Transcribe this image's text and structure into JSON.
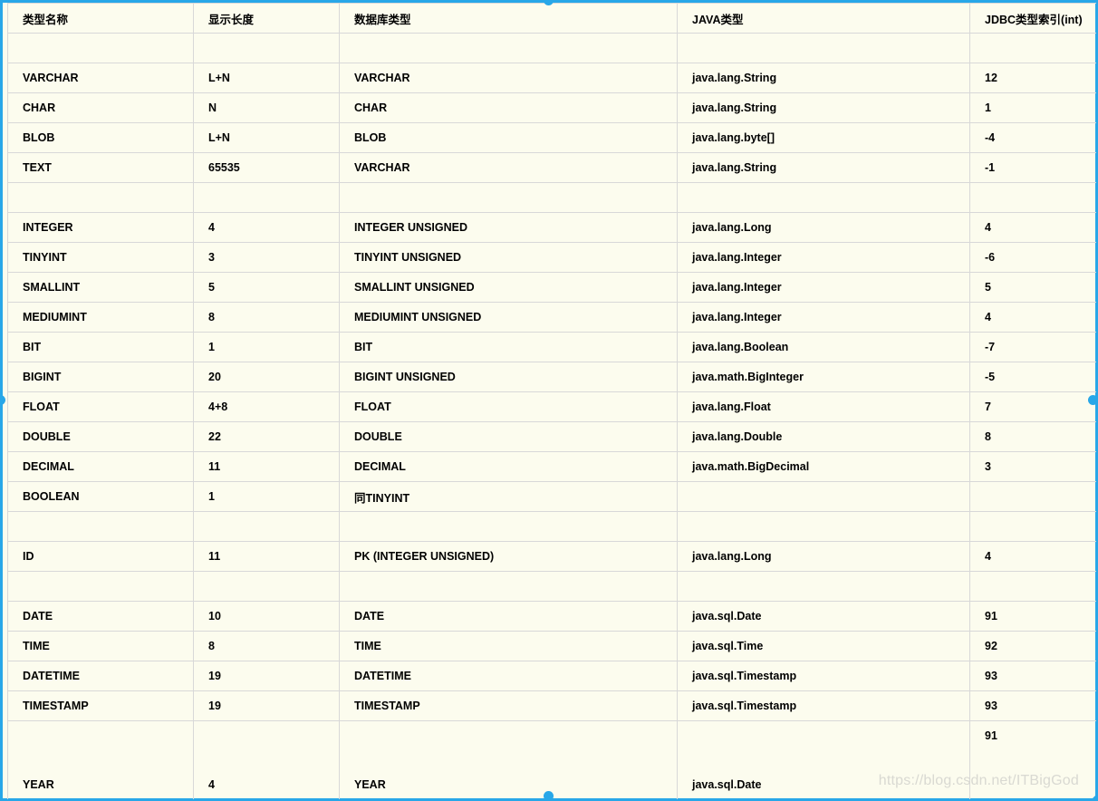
{
  "table": {
    "columns": [
      "类型名称",
      "显示长度",
      "数据库类型",
      "JAVA类型",
      "JDBC类型索引(int)"
    ],
    "rows": [
      [
        "",
        "",
        "",
        "",
        ""
      ],
      [
        "VARCHAR",
        "L+N",
        "VARCHAR",
        "java.lang.String",
        "12"
      ],
      [
        "CHAR",
        "N",
        "CHAR",
        "java.lang.String",
        "1"
      ],
      [
        "BLOB",
        "L+N",
        "BLOB",
        "java.lang.byte[]",
        "-4"
      ],
      [
        "TEXT",
        "65535",
        "VARCHAR",
        "java.lang.String",
        "-1"
      ],
      [
        "",
        "",
        "",
        "",
        ""
      ],
      [
        "INTEGER",
        "4",
        "INTEGER UNSIGNED",
        "java.lang.Long",
        "4"
      ],
      [
        "TINYINT",
        "3",
        "TINYINT UNSIGNED",
        "java.lang.Integer",
        "-6"
      ],
      [
        "SMALLINT",
        "5",
        "SMALLINT UNSIGNED",
        "java.lang.Integer",
        "5"
      ],
      [
        "MEDIUMINT",
        "8",
        "MEDIUMINT UNSIGNED",
        "java.lang.Integer",
        "4"
      ],
      [
        "BIT",
        "1",
        "BIT",
        "java.lang.Boolean",
        "-7"
      ],
      [
        "BIGINT",
        "20",
        "BIGINT UNSIGNED",
        "java.math.BigInteger",
        "-5"
      ],
      [
        "FLOAT",
        "4+8",
        "FLOAT",
        "java.lang.Float",
        "7"
      ],
      [
        "DOUBLE",
        "22",
        "DOUBLE",
        "java.lang.Double",
        "8"
      ],
      [
        "DECIMAL",
        "11",
        "DECIMAL",
        "java.math.BigDecimal",
        "3"
      ],
      [
        "BOOLEAN",
        "1",
        "同TINYINT",
        "",
        ""
      ],
      [
        "",
        "",
        "",
        "",
        ""
      ],
      [
        "ID",
        "11",
        "PK (INTEGER UNSIGNED)",
        "java.lang.Long",
        "4"
      ],
      [
        "",
        "",
        "",
        "",
        ""
      ],
      [
        "DATE",
        "10",
        "DATE",
        "java.sql.Date",
        "91"
      ],
      [
        "TIME",
        "8",
        "TIME",
        "java.sql.Time",
        "92"
      ],
      [
        "DATETIME",
        "19",
        "DATETIME",
        "java.sql.Timestamp",
        "93"
      ],
      [
        "TIMESTAMP",
        "19",
        "TIMESTAMP",
        "java.sql.Timestamp",
        "93"
      ],
      [
        "YEAR",
        "4",
        "YEAR",
        "java.sql.Date",
        "91"
      ]
    ]
  },
  "watermark": {
    "text": "https://blog.csdn.net/ITBigGod"
  },
  "selection": {
    "color": "#28a7e8",
    "handles": [
      "top-center",
      "bottom-center",
      "left-center",
      "right-center",
      "bottom-right-corner"
    ]
  },
  "colors": {
    "background": "#fcfcee",
    "grid_line": "#d8d8d8",
    "text": "#000000",
    "watermark": "#d9d9d2"
  }
}
